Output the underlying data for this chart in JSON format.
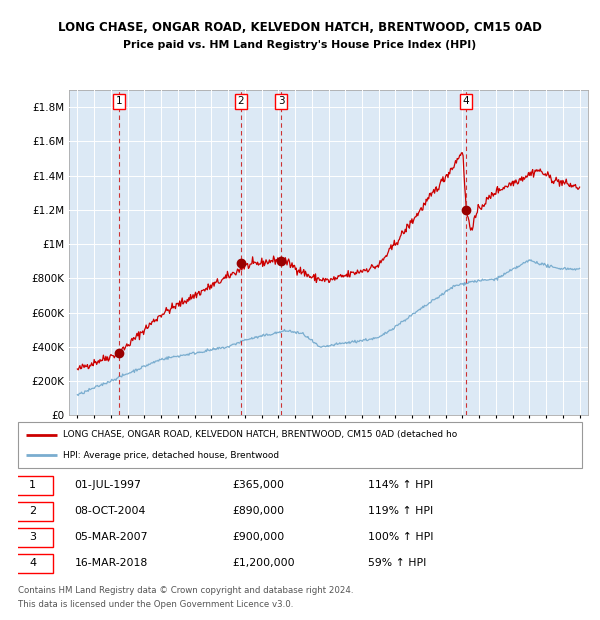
{
  "title1": "LONG CHASE, ONGAR ROAD, KELVEDON HATCH, BRENTWOOD, CM15 0AD",
  "title2": "Price paid vs. HM Land Registry's House Price Index (HPI)",
  "bg_color": "#dce9f5",
  "grid_color": "white",
  "red_line_color": "#cc0000",
  "blue_line_color": "#7aadcf",
  "sale_marker_color": "#990000",
  "vline_color": "#cc3333",
  "ylim": [
    0,
    1900000
  ],
  "yticks": [
    0,
    200000,
    400000,
    600000,
    800000,
    1000000,
    1200000,
    1400000,
    1600000,
    1800000
  ],
  "ytick_labels": [
    "£0",
    "£200K",
    "£400K",
    "£600K",
    "£800K",
    "£1M",
    "£1.2M",
    "£1.4M",
    "£1.6M",
    "£1.8M"
  ],
  "sales": [
    {
      "label": 1,
      "date_idx": 1997.5,
      "price": 365000,
      "date_str": "01-JUL-1997",
      "pct": "114%",
      "dir": "↑"
    },
    {
      "label": 2,
      "date_idx": 2004.77,
      "price": 890000,
      "date_str": "08-OCT-2004",
      "pct": "119%",
      "dir": "↑"
    },
    {
      "label": 3,
      "date_idx": 2007.18,
      "price": 900000,
      "date_str": "05-MAR-2007",
      "pct": "100%",
      "dir": "↑"
    },
    {
      "label": 4,
      "date_idx": 2018.21,
      "price": 1200000,
      "date_str": "16-MAR-2018",
      "pct": "59%",
      "dir": "↑"
    }
  ],
  "legend_red_label": "LONG CHASE, ONGAR ROAD, KELVEDON HATCH, BRENTWOOD, CM15 0AD (detached ho",
  "legend_blue_label": "HPI: Average price, detached house, Brentwood",
  "footer1": "Contains HM Land Registry data © Crown copyright and database right 2024.",
  "footer2": "This data is licensed under the Open Government Licence v3.0.",
  "xlim_left": 1994.5,
  "xlim_right": 2025.5
}
